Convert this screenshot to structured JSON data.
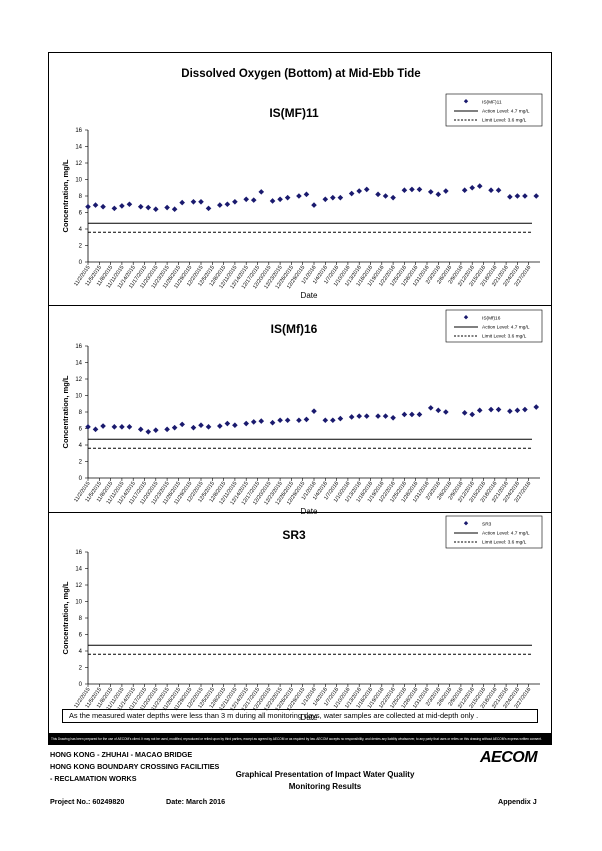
{
  "page": {
    "title": "Dissolved Oxygen (Bottom) at Mid-Ebb Tide",
    "note": "As the measured water depths were less than 3 m during all monitoring days, water samples are collected  at mid-depth only .",
    "disclaimer": "This Drawing has been prepared for the use of AECOM's client. It may not be used, modified, reproduced or relied upon by third parties, except as agreed by AECOM or as required by law. AECOM accepts no responsibility, and denies any liability whatsoever, to any party that uses or relies on this drawing without AECOM's express written consent."
  },
  "footer": {
    "line1": "HONG KONG - ZHUHAI - MACAO BRIDGE",
    "line2": "HONG KONG BOUNDARY CROSSING FACILITIES",
    "line3": "- RECLAMATION WORKS",
    "center1": "Graphical Presentation of Impact Water Quality",
    "center2": "Monitoring Results",
    "project": "Project No.: 60249820",
    "date": "Date: March 2016",
    "appendix": "Appendix J",
    "logo": "AECOM"
  },
  "chart_data": [
    {
      "type": "scatter",
      "title": "IS(MF)11",
      "xlabel": "Date",
      "ylabel": "Concentration, mg/L",
      "ylim": [
        0,
        16
      ],
      "yticks": [
        "0",
        "2",
        "4",
        "6",
        "8",
        "10",
        "12",
        "14",
        "16"
      ],
      "xticks": [
        "11/2/2015",
        "11/5/2015",
        "11/8/2015",
        "11/11/2015",
        "11/14/2015",
        "11/17/2015",
        "11/20/2015",
        "11/23/2015",
        "11/26/2015",
        "11/29/2015",
        "12/2/2015",
        "12/5/2015",
        "12/8/2015",
        "12/11/2015",
        "12/14/2015",
        "12/17/2015",
        "12/20/2015",
        "12/23/2015",
        "12/26/2015",
        "12/29/2015",
        "1/1/2016",
        "1/4/2016",
        "1/7/2016",
        "1/10/2016",
        "1/13/2016",
        "1/16/2016",
        "1/19/2016",
        "1/22/2016",
        "1/25/2016",
        "1/28/2016",
        "1/31/2016",
        "2/3/2016",
        "2/6/2016",
        "2/9/2016",
        "2/12/2016",
        "2/15/2016",
        "2/18/2016",
        "2/21/2016",
        "2/24/2016",
        "2/27/2016"
      ],
      "legend": {
        "placement": "top-right",
        "entries": [
          "IS(MF)11",
          "Action Level: 4.7 mg/L",
          "Limit Level: 3.6 mg/L"
        ]
      },
      "action_level": 4.7,
      "limit_level": 3.6,
      "series": [
        {
          "name": "IS(MF)11",
          "x": [
            "11/2/2015",
            "11/4/2015",
            "11/6/2015",
            "11/9/2015",
            "11/11/2015",
            "11/13/2015",
            "11/16/2015",
            "11/18/2015",
            "11/20/2015",
            "11/23/2015",
            "11/25/2015",
            "11/27/2015",
            "11/30/2015",
            "12/2/2015",
            "12/4/2015",
            "12/7/2015",
            "12/9/2015",
            "12/11/2015",
            "12/14/2015",
            "12/16/2015",
            "12/18/2015",
            "12/21/2015",
            "12/23/2015",
            "12/25/2015",
            "12/28/2015",
            "12/30/2015",
            "1/1/2016",
            "1/4/2016",
            "1/6/2016",
            "1/8/2016",
            "1/11/2016",
            "1/13/2016",
            "1/15/2016",
            "1/18/2016",
            "1/20/2016",
            "1/22/2016",
            "1/25/2016",
            "1/27/2016",
            "1/29/2016",
            "2/1/2016",
            "2/3/2016",
            "2/5/2016",
            "2/10/2016",
            "2/12/2016",
            "2/14/2016",
            "2/17/2016",
            "2/19/2016",
            "2/22/2016",
            "2/24/2016",
            "2/26/2016",
            "2/29/2016"
          ],
          "values": [
            6.7,
            6.9,
            6.7,
            6.5,
            6.8,
            7.0,
            6.7,
            6.6,
            6.4,
            6.6,
            6.4,
            7.2,
            7.3,
            7.3,
            6.5,
            6.9,
            7.0,
            7.3,
            7.6,
            7.5,
            8.5,
            7.4,
            7.6,
            7.8,
            8.0,
            8.2,
            6.9,
            7.6,
            7.8,
            7.8,
            8.3,
            8.6,
            8.8,
            8.2,
            8.0,
            7.8,
            8.7,
            8.8,
            8.8,
            8.5,
            8.2,
            8.6,
            8.7,
            9.0,
            9.2,
            8.7,
            8.7,
            7.9,
            8.0,
            8.0,
            8.0
          ]
        }
      ]
    },
    {
      "type": "scatter",
      "title": "IS(Mf)16",
      "xlabel": "Date",
      "ylabel": "Concentration, mg/L",
      "ylim": [
        0,
        16
      ],
      "yticks": [
        "0",
        "2",
        "4",
        "6",
        "8",
        "10",
        "12",
        "14",
        "16"
      ],
      "xticks": [
        "11/2/2015",
        "11/5/2015",
        "11/8/2015",
        "11/11/2015",
        "11/14/2015",
        "11/17/2015",
        "11/20/2015",
        "11/23/2015",
        "11/26/2015",
        "11/29/2015",
        "12/2/2015",
        "12/5/2015",
        "12/8/2015",
        "12/11/2015",
        "12/14/2015",
        "12/17/2015",
        "12/20/2015",
        "12/23/2015",
        "12/26/2015",
        "12/29/2015",
        "1/1/2016",
        "1/4/2016",
        "1/7/2016",
        "1/10/2016",
        "1/13/2016",
        "1/16/2016",
        "1/19/2016",
        "1/22/2016",
        "1/25/2016",
        "1/28/2016",
        "1/31/2016",
        "2/3/2016",
        "2/6/2016",
        "2/9/2016",
        "2/12/2016",
        "2/15/2016",
        "2/18/2016",
        "2/21/2016",
        "2/24/2016",
        "2/27/2016"
      ],
      "legend": {
        "placement": "top-right",
        "entries": [
          "IS(Mf)16",
          "Action Level: 4.7 mg/L",
          "Limit Level: 3.6 mg/L"
        ]
      },
      "action_level": 4.7,
      "limit_level": 3.6,
      "series": [
        {
          "name": "IS(Mf)16",
          "x": [
            "11/2/2015",
            "11/4/2015",
            "11/6/2015",
            "11/9/2015",
            "11/11/2015",
            "11/13/2015",
            "11/16/2015",
            "11/18/2015",
            "11/20/2015",
            "11/23/2015",
            "11/25/2015",
            "11/27/2015",
            "11/30/2015",
            "12/2/2015",
            "12/4/2015",
            "12/7/2015",
            "12/9/2015",
            "12/11/2015",
            "12/14/2015",
            "12/16/2015",
            "12/18/2015",
            "12/21/2015",
            "12/23/2015",
            "12/25/2015",
            "12/28/2015",
            "12/30/2015",
            "1/1/2016",
            "1/4/2016",
            "1/6/2016",
            "1/8/2016",
            "1/11/2016",
            "1/13/2016",
            "1/15/2016",
            "1/18/2016",
            "1/20/2016",
            "1/22/2016",
            "1/25/2016",
            "1/27/2016",
            "1/29/2016",
            "2/1/2016",
            "2/3/2016",
            "2/5/2016",
            "2/10/2016",
            "2/12/2016",
            "2/14/2016",
            "2/17/2016",
            "2/19/2016",
            "2/22/2016",
            "2/24/2016",
            "2/26/2016",
            "2/29/2016"
          ],
          "values": [
            6.2,
            5.9,
            6.3,
            6.2,
            6.2,
            6.2,
            5.9,
            5.6,
            5.8,
            5.9,
            6.1,
            6.5,
            6.1,
            6.4,
            6.2,
            6.3,
            6.6,
            6.4,
            6.6,
            6.8,
            6.9,
            6.7,
            7.0,
            7.0,
            7.0,
            7.1,
            8.1,
            7.0,
            7.0,
            7.2,
            7.4,
            7.5,
            7.5,
            7.5,
            7.5,
            7.3,
            7.7,
            7.7,
            7.7,
            8.5,
            8.2,
            8.0,
            7.9,
            7.7,
            8.2,
            8.3,
            8.3,
            8.1,
            8.2,
            8.3,
            8.6
          ]
        }
      ]
    },
    {
      "type": "scatter",
      "title": "SR3",
      "xlabel": "Date",
      "ylabel": "Concentration, mg/L",
      "ylim": [
        0,
        16
      ],
      "yticks": [
        "0",
        "2",
        "4",
        "6",
        "8",
        "10",
        "12",
        "14",
        "16"
      ],
      "xticks": [
        "11/2/2015",
        "11/5/2015",
        "11/8/2015",
        "11/11/2015",
        "11/14/2015",
        "11/17/2015",
        "11/20/2015",
        "11/23/2015",
        "11/26/2015",
        "11/29/2015",
        "12/2/2015",
        "12/5/2015",
        "12/8/2015",
        "12/11/2015",
        "12/14/2015",
        "12/17/2015",
        "12/20/2015",
        "12/23/2015",
        "12/26/2015",
        "12/29/2015",
        "1/1/2016",
        "1/4/2016",
        "1/7/2016",
        "1/10/2016",
        "1/13/2016",
        "1/16/2016",
        "1/19/2016",
        "1/22/2016",
        "1/25/2016",
        "1/28/2016",
        "1/31/2016",
        "2/3/2016",
        "2/6/2016",
        "2/9/2016",
        "2/12/2016",
        "2/15/2016",
        "2/18/2016",
        "2/21/2016",
        "2/24/2016",
        "2/27/2016"
      ],
      "legend": {
        "placement": "top-right",
        "entries": [
          "SR3",
          "Action Level: 4.7 mg/L",
          "Limit Level: 3.6 mg/L"
        ]
      },
      "action_level": 4.7,
      "limit_level": 3.6,
      "series": [
        {
          "name": "SR3",
          "x": [],
          "values": []
        }
      ]
    }
  ]
}
